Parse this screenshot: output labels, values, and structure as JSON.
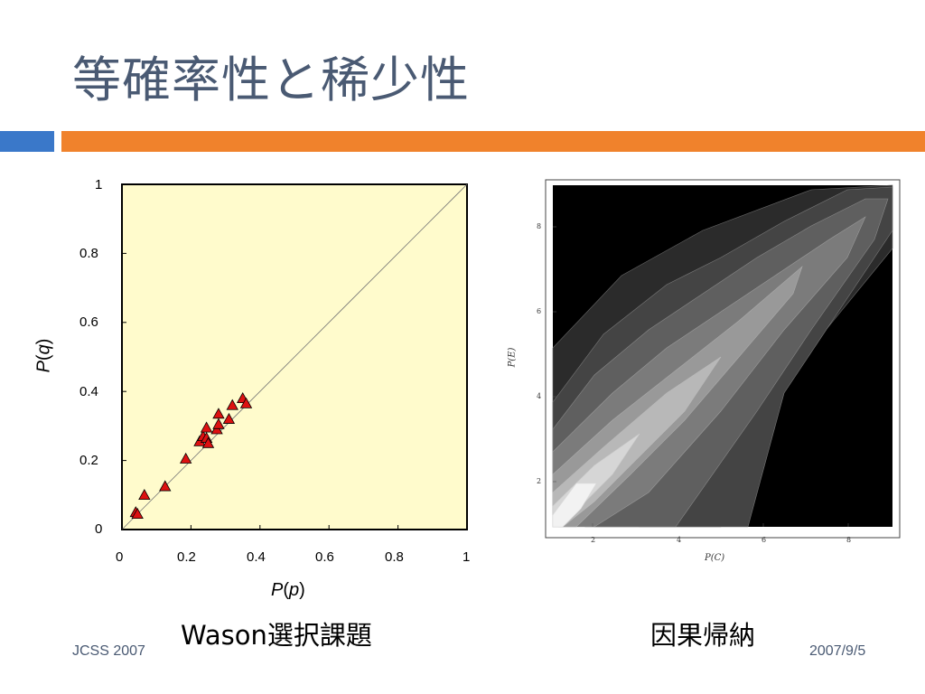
{
  "slide": {
    "title": "等確率性と稀少性",
    "footer_left": "JCSS 2007",
    "footer_right": "2007/9/5",
    "caption_left": "Wason選択課題",
    "caption_right": "因果帰納",
    "accent_blue": "#3a78c9",
    "accent_orange": "#f0822c",
    "title_color": "#4a5a73"
  },
  "chart_data": [
    {
      "type": "scatter",
      "xlabel_var": "p",
      "ylabel_var": "q",
      "xlabel_func": "P",
      "ylabel_func": "P",
      "xlim": [
        0,
        1
      ],
      "ylim": [
        0,
        1
      ],
      "x_ticks": [
        "0",
        "0.2",
        "0.4",
        "0.6",
        "0.8",
        "1"
      ],
      "y_ticks": [
        "0",
        "0.2",
        "0.4",
        "0.6",
        "0.8",
        "1"
      ],
      "background": "#fffbcc",
      "marker_color": "#dd1111",
      "reference_line": "y = x",
      "points": [
        [
          0.04,
          0.05
        ],
        [
          0.045,
          0.045
        ],
        [
          0.065,
          0.1
        ],
        [
          0.125,
          0.125
        ],
        [
          0.185,
          0.205
        ],
        [
          0.225,
          0.255
        ],
        [
          0.235,
          0.27
        ],
        [
          0.245,
          0.295
        ],
        [
          0.245,
          0.265
        ],
        [
          0.25,
          0.25
        ],
        [
          0.275,
          0.29
        ],
        [
          0.28,
          0.305
        ],
        [
          0.28,
          0.335
        ],
        [
          0.31,
          0.32
        ],
        [
          0.32,
          0.36
        ],
        [
          0.35,
          0.38
        ],
        [
          0.36,
          0.365
        ]
      ]
    },
    {
      "type": "heatmap",
      "xlabel": "P(C)",
      "ylabel": "P(E)",
      "x_ticks": [
        "2",
        "4",
        "6",
        "8"
      ],
      "y_ticks": [
        "2",
        "4",
        "6",
        "8"
      ],
      "xlim": [
        1,
        9
      ],
      "ylim": [
        1,
        9
      ],
      "style": "contour, grayscale, ridge along y = x peaking near lower-left"
    }
  ]
}
